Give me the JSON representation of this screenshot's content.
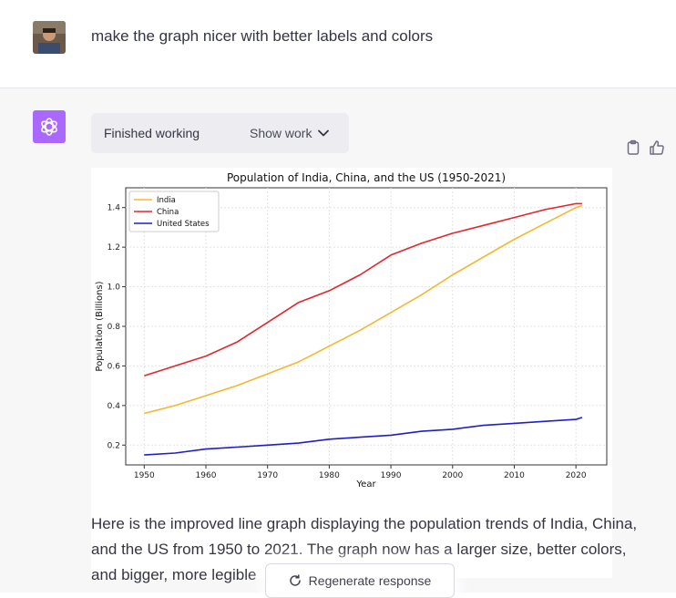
{
  "user": {
    "message": "make the graph nicer with better labels and colors"
  },
  "assistant": {
    "work_status": "Finished working",
    "show_work_label": "Show work",
    "response_text": "Here is the improved line graph displaying the population trends of India, China, and the US from 1950 to 2021. The graph now has a larger size, better colors, and bigger, more legible",
    "regenerate_label": "Regenerate response"
  },
  "icons": {
    "avatar": "user-avatar",
    "logo": "chatgpt-logo-icon",
    "copy": "clipboard-icon",
    "like": "thumbs-up-icon",
    "show_work": "chevron-down-icon",
    "regenerate": "refresh-icon"
  },
  "colors": {
    "india": "#f5b731",
    "china": "#e2262b",
    "us": "#1f1fc7",
    "logo_bg": "#ab68ff"
  },
  "chart_data": {
    "type": "line",
    "title": "Population of India, China, and the US (1950-2021)",
    "xlabel": "Year",
    "ylabel": "Population (Billions)",
    "xlim": [
      1947,
      2025
    ],
    "ylim": [
      0.1,
      1.5
    ],
    "xticks": [
      1950,
      1960,
      1970,
      1980,
      1990,
      2000,
      2010,
      2020
    ],
    "yticks": [
      0.2,
      0.4,
      0.6,
      0.8,
      1.0,
      1.2,
      1.4
    ],
    "grid": true,
    "legend": "top-left",
    "x": [
      1950,
      1955,
      1960,
      1965,
      1970,
      1975,
      1980,
      1985,
      1990,
      1995,
      2000,
      2005,
      2010,
      2015,
      2020,
      2021
    ],
    "series": [
      {
        "name": "India",
        "color": "#f5b731",
        "values": [
          0.36,
          0.4,
          0.45,
          0.5,
          0.56,
          0.62,
          0.7,
          0.78,
          0.87,
          0.96,
          1.06,
          1.15,
          1.24,
          1.32,
          1.4,
          1.41
        ]
      },
      {
        "name": "China",
        "color": "#e2262b",
        "values": [
          0.55,
          0.6,
          0.65,
          0.72,
          0.82,
          0.92,
          0.98,
          1.06,
          1.16,
          1.22,
          1.27,
          1.31,
          1.35,
          1.39,
          1.42,
          1.42
        ]
      },
      {
        "name": "United States",
        "color": "#1f1fc7",
        "values": [
          0.15,
          0.16,
          0.18,
          0.19,
          0.2,
          0.21,
          0.23,
          0.24,
          0.25,
          0.27,
          0.28,
          0.3,
          0.31,
          0.32,
          0.33,
          0.34
        ]
      }
    ]
  }
}
